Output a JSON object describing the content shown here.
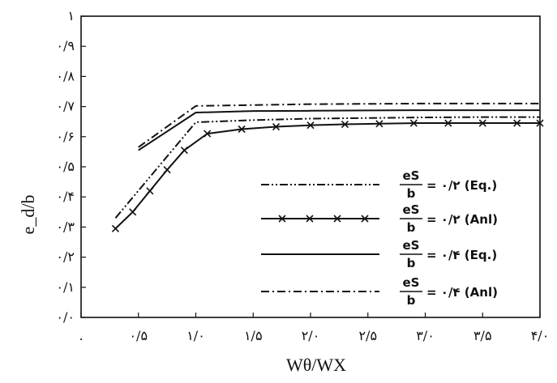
{
  "chart_data": {
    "type": "line",
    "title": "",
    "xlabel": "Wθ/WX",
    "ylabel": "e_d/b",
    "xlim": [
      0,
      4.0
    ],
    "ylim": [
      0,
      1.0
    ],
    "x_ticks": [
      {
        "value": 0,
        "label": "."
      },
      {
        "value": 0.5,
        "label": "۰/۵"
      },
      {
        "value": 1.0,
        "label": "۱/۰"
      },
      {
        "value": 1.5,
        "label": "۱/۵"
      },
      {
        "value": 2.0,
        "label": "۲/۰"
      },
      {
        "value": 2.5,
        "label": "۲/۵"
      },
      {
        "value": 3.0,
        "label": "۳/۰"
      },
      {
        "value": 3.5,
        "label": "۳/۵"
      },
      {
        "value": 4.0,
        "label": "۴/۰"
      }
    ],
    "y_ticks": [
      {
        "value": 0.0,
        "label": "۰/۰"
      },
      {
        "value": 0.1,
        "label": "۰/۱"
      },
      {
        "value": 0.2,
        "label": "۰/۲"
      },
      {
        "value": 0.3,
        "label": "۰/۳"
      },
      {
        "value": 0.4,
        "label": "۰/۴"
      },
      {
        "value": 0.5,
        "label": "۰/۵"
      },
      {
        "value": 0.6,
        "label": "۰/۶"
      },
      {
        "value": 0.7,
        "label": "۰/۷"
      },
      {
        "value": 0.8,
        "label": "۰/۸"
      },
      {
        "value": 0.9,
        "label": "۰/۹"
      },
      {
        "value": 1.0,
        "label": "۱"
      }
    ],
    "grid": false,
    "legend_position": "bottom-right",
    "series": [
      {
        "name": "= ۰/۲ (Eq.)",
        "frac_top": "eS",
        "frac_bottom": "b",
        "style": "dash-dot-dot",
        "marker": "none",
        "color": "#111111",
        "x": [
          0.3,
          1.0,
          1.5,
          2.0,
          2.5,
          3.0,
          3.5,
          4.0
        ],
        "y": [
          0.33,
          0.648,
          0.655,
          0.66,
          0.662,
          0.664,
          0.665,
          0.665
        ]
      },
      {
        "name": "= ۰/۲ (Anl)",
        "frac_top": "eS",
        "frac_bottom": "b",
        "style": "solid",
        "marker": "x",
        "color": "#111111",
        "x": [
          0.3,
          0.45,
          0.6,
          0.75,
          0.9,
          1.1,
          1.4,
          1.7,
          2.0,
          2.3,
          2.6,
          2.9,
          3.2,
          3.5,
          3.8,
          4.0
        ],
        "y": [
          0.295,
          0.35,
          0.42,
          0.49,
          0.555,
          0.61,
          0.625,
          0.633,
          0.638,
          0.641,
          0.643,
          0.645,
          0.645,
          0.645,
          0.645,
          0.645
        ]
      },
      {
        "name": "= ۰/۴ (Eq.)",
        "frac_top": "eS",
        "frac_bottom": "b",
        "style": "solid",
        "marker": "none",
        "color": "#111111",
        "x": [
          0.5,
          1.0,
          1.5,
          2.0,
          2.5,
          3.0,
          3.5,
          4.0
        ],
        "y": [
          0.555,
          0.68,
          0.685,
          0.686,
          0.687,
          0.688,
          0.688,
          0.688
        ]
      },
      {
        "name": "= ۰/۴ (Anl)",
        "frac_top": "eS",
        "frac_bottom": "b",
        "style": "dash-dot",
        "marker": "none",
        "color": "#111111",
        "x": [
          0.5,
          1.0,
          1.5,
          2.0,
          2.5,
          3.0,
          3.5,
          4.0
        ],
        "y": [
          0.565,
          0.702,
          0.705,
          0.708,
          0.709,
          0.71,
          0.71,
          0.71
        ]
      }
    ]
  }
}
